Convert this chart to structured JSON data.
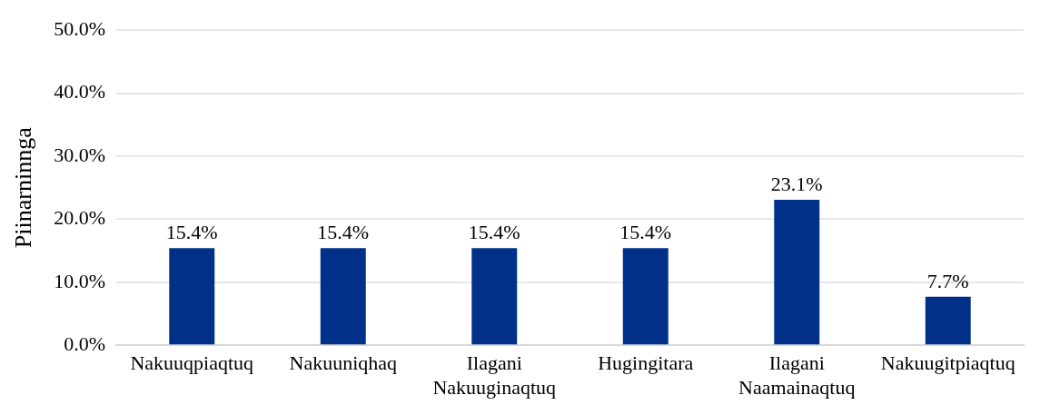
{
  "chart_data": {
    "type": "bar",
    "ylabel": "Piinarninnga",
    "categories": [
      "Nakuuqpiaqtuq",
      "Nakuuniqhaq",
      "Ilagani Nakuuginaqtuq",
      "Hugingitara",
      "Ilagani Naamainaqtuq",
      "Nakuugitpiaqtuq"
    ],
    "values": [
      15.4,
      15.4,
      15.4,
      15.4,
      23.1,
      7.7
    ],
    "value_labels": [
      "15.4%",
      "15.4%",
      "15.4%",
      "15.4%",
      "23.1%",
      "7.7%"
    ],
    "color": "#003087",
    "ylim": [
      0,
      50
    ],
    "yticks": [
      {
        "value": 0,
        "label": "0.0%"
      },
      {
        "value": 10,
        "label": "10.0%"
      },
      {
        "value": 20,
        "label": "20.0%"
      },
      {
        "value": 30,
        "label": "30.0%"
      },
      {
        "value": 40,
        "label": "40.0%"
      },
      {
        "value": 50,
        "label": "50.0%"
      }
    ],
    "grid": "y",
    "legend": false
  }
}
